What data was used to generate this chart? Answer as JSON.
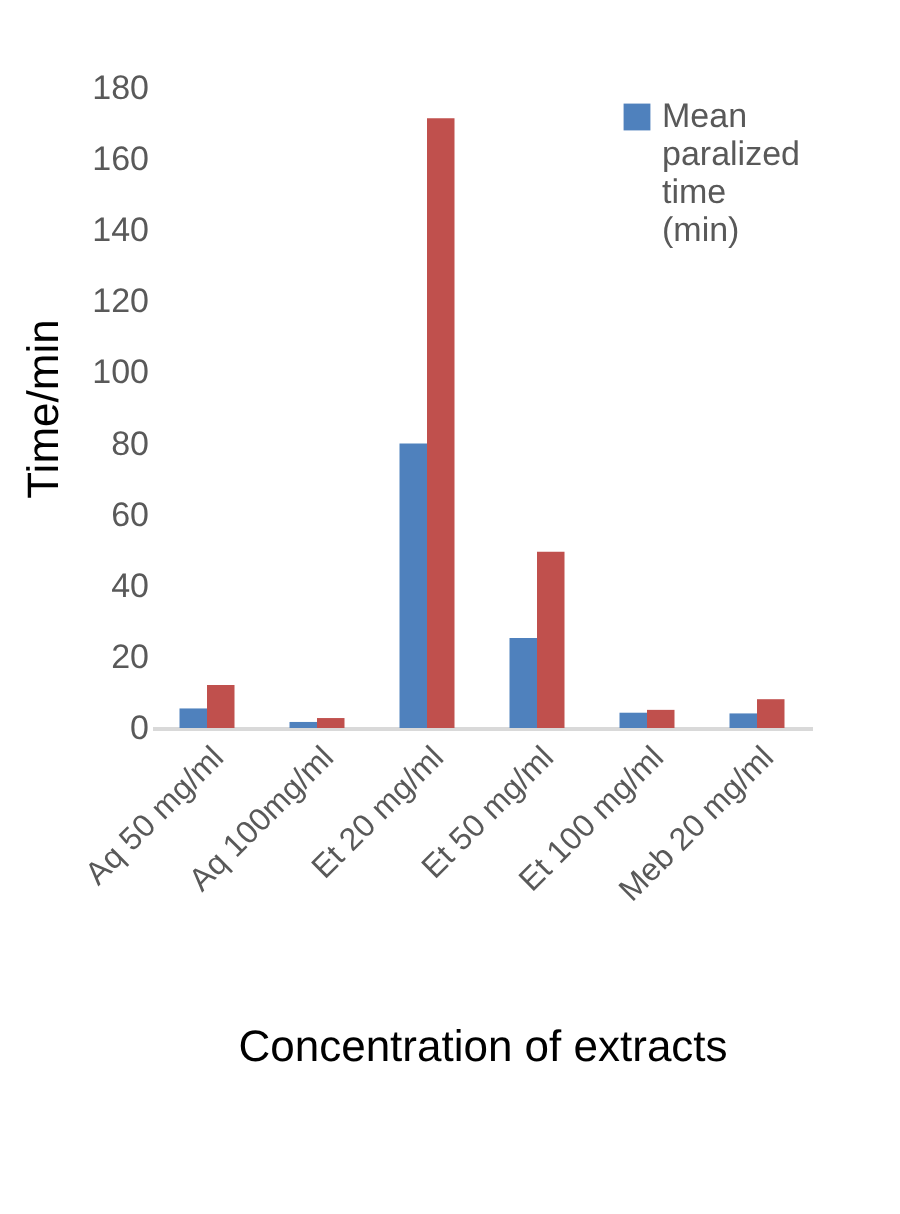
{
  "chart_data": {
    "type": "bar",
    "xlabel": "Concentration of extracts",
    "ylabel": "Time/min",
    "categories": [
      "Aq 50 mg/ml",
      "Aq 100mg/ml",
      "Et 20 mg/ml",
      "Et 50 mg/ml",
      "Et 100 mg/ml",
      "Meb 20 mg/ml"
    ],
    "series": [
      {
        "name": "Mean paralized time (min)",
        "color": "#4f81bd",
        "values": [
          5.5,
          1.7,
          80,
          25.3,
          4.3,
          4.1
        ]
      },
      {
        "color": "#c0504d",
        "values": [
          12.1,
          2.8,
          171.5,
          49.6,
          5.1,
          8.1
        ]
      }
    ],
    "ylim": [
      0,
      180
    ],
    "yticks": [
      0,
      20,
      40,
      60,
      80,
      100,
      120,
      140,
      160,
      180
    ],
    "grid": false,
    "legend": "top right"
  }
}
